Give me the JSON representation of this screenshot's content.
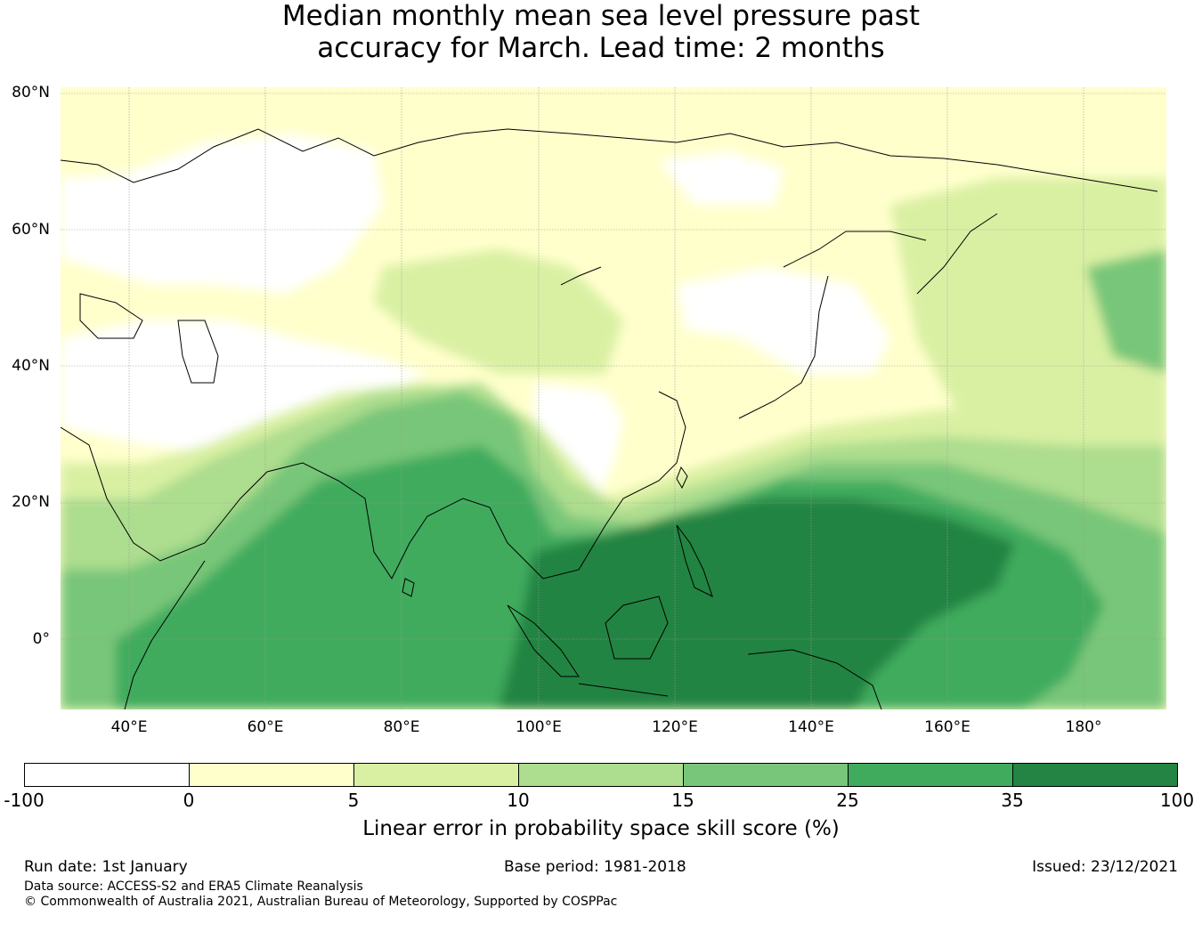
{
  "title": {
    "line1": "Median monthly mean sea level pressure past",
    "line2": "accuracy for March. Lead time: 2 months"
  },
  "map": {
    "lat_labels": [
      "80°N",
      "60°N",
      "40°N",
      "20°N",
      "0°"
    ],
    "lon_labels": [
      "40°E",
      "60°E",
      "80°E",
      "100°E",
      "120°E",
      "140°E",
      "160°E",
      "180°"
    ]
  },
  "colorbar": {
    "colors": [
      "#ffffff",
      "#ffffcc",
      "#d9f0a3",
      "#addd8e",
      "#78c679",
      "#41ab5d",
      "#238443"
    ],
    "ticks": [
      "-100",
      "0",
      "5",
      "10",
      "15",
      "25",
      "35",
      "100"
    ],
    "label": "Linear error in probability space skill score (%)"
  },
  "footer": {
    "run_date": "Run date: 1st January",
    "base_period": "Base period: 1981-2018",
    "issued": "Issued: 23/12/2021",
    "data_source": "Data source: ACCESS-S2 and ERA5 Climate Reanalysis",
    "copyright": "© Commonwealth of Australia 2021, Australian Bureau of Meteorology, Supported by COSPPac"
  }
}
